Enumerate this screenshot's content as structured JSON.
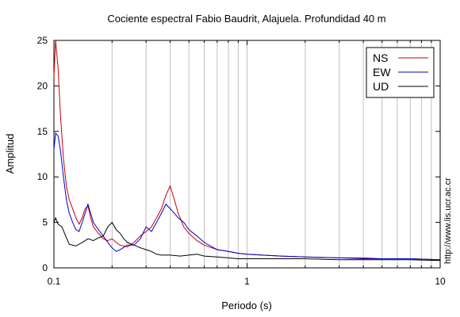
{
  "chart_data": {
    "type": "line",
    "title": "Cociente espectral Fabio Baudrit, Alajuela. Profundidad 40 m",
    "xlabel": "Periodo (s)",
    "ylabel": "Amplitud",
    "x_scale": "log",
    "xlim": [
      0.1,
      10
    ],
    "ylim": [
      0,
      25
    ],
    "x_ticks": [
      {
        "value": 0.1,
        "label": "0.1"
      },
      {
        "value": 1,
        "label": "1"
      },
      {
        "value": 10,
        "label": "10"
      }
    ],
    "y_ticks": [
      {
        "value": 0,
        "label": "0"
      },
      {
        "value": 5,
        "label": "5"
      },
      {
        "value": 10,
        "label": "10"
      },
      {
        "value": 15,
        "label": "15"
      },
      {
        "value": 20,
        "label": "20"
      },
      {
        "value": 25,
        "label": "25"
      }
    ],
    "grid": "vertical-log",
    "legend_position": "top-right",
    "credit": "http://www.lis.ucr.ac.cr",
    "series": [
      {
        "name": "NS",
        "color": "#cc0000",
        "points": [
          [
            0.1,
            21
          ],
          [
            0.102,
            25
          ],
          [
            0.105,
            22
          ],
          [
            0.108,
            17
          ],
          [
            0.112,
            12
          ],
          [
            0.116,
            9
          ],
          [
            0.12,
            7.5
          ],
          [
            0.125,
            6.5
          ],
          [
            0.13,
            5.5
          ],
          [
            0.135,
            4.8
          ],
          [
            0.14,
            5.5
          ],
          [
            0.145,
            6.5
          ],
          [
            0.15,
            6.8
          ],
          [
            0.155,
            5.5
          ],
          [
            0.16,
            4.5
          ],
          [
            0.17,
            3.8
          ],
          [
            0.18,
            3.2
          ],
          [
            0.19,
            3.0
          ],
          [
            0.2,
            3.2
          ],
          [
            0.21,
            2.8
          ],
          [
            0.22,
            2.5
          ],
          [
            0.24,
            2.3
          ],
          [
            0.26,
            2.8
          ],
          [
            0.28,
            3.5
          ],
          [
            0.3,
            4.0
          ],
          [
            0.32,
            4.5
          ],
          [
            0.34,
            5.5
          ],
          [
            0.36,
            6.5
          ],
          [
            0.38,
            8.0
          ],
          [
            0.4,
            9.0
          ],
          [
            0.42,
            7.5
          ],
          [
            0.44,
            6.0
          ],
          [
            0.47,
            4.5
          ],
          [
            0.5,
            3.8
          ],
          [
            0.55,
            3.0
          ],
          [
            0.6,
            2.5
          ],
          [
            0.7,
            2.0
          ],
          [
            0.8,
            1.8
          ],
          [
            0.9,
            1.6
          ],
          [
            1.0,
            1.5
          ],
          [
            1.2,
            1.4
          ],
          [
            1.5,
            1.3
          ],
          [
            2,
            1.2
          ],
          [
            3,
            1.1
          ],
          [
            4,
            1.1
          ],
          [
            5,
            1.0
          ],
          [
            7,
            1.0
          ],
          [
            10,
            0.9
          ]
        ]
      },
      {
        "name": "EW",
        "color": "#0000cc",
        "points": [
          [
            0.1,
            13
          ],
          [
            0.102,
            14.8
          ],
          [
            0.105,
            14.5
          ],
          [
            0.108,
            13
          ],
          [
            0.112,
            10
          ],
          [
            0.116,
            7.5
          ],
          [
            0.12,
            6
          ],
          [
            0.125,
            5
          ],
          [
            0.13,
            4.2
          ],
          [
            0.135,
            4
          ],
          [
            0.14,
            5
          ],
          [
            0.145,
            6
          ],
          [
            0.15,
            7
          ],
          [
            0.155,
            6
          ],
          [
            0.16,
            5
          ],
          [
            0.17,
            4.2
          ],
          [
            0.18,
            3.5
          ],
          [
            0.19,
            2.8
          ],
          [
            0.2,
            2.2
          ],
          [
            0.21,
            1.8
          ],
          [
            0.22,
            2.0
          ],
          [
            0.24,
            2.5
          ],
          [
            0.26,
            2.5
          ],
          [
            0.28,
            3.2
          ],
          [
            0.3,
            4.5
          ],
          [
            0.32,
            4.0
          ],
          [
            0.34,
            5.0
          ],
          [
            0.36,
            6.0
          ],
          [
            0.38,
            7.0
          ],
          [
            0.4,
            6.5
          ],
          [
            0.42,
            6.0
          ],
          [
            0.44,
            5.5
          ],
          [
            0.47,
            5.0
          ],
          [
            0.5,
            4.2
          ],
          [
            0.55,
            3.5
          ],
          [
            0.6,
            2.8
          ],
          [
            0.7,
            2.0
          ],
          [
            0.8,
            1.8
          ],
          [
            0.9,
            1.6
          ],
          [
            1.0,
            1.5
          ],
          [
            1.2,
            1.4
          ],
          [
            1.5,
            1.3
          ],
          [
            2,
            1.2
          ],
          [
            3,
            1.1
          ],
          [
            4,
            1.0
          ],
          [
            5,
            1.0
          ],
          [
            7,
            1.0
          ],
          [
            10,
            0.9
          ]
        ]
      },
      {
        "name": "UD",
        "color": "#000000",
        "points": [
          [
            0.1,
            5.0
          ],
          [
            0.102,
            5.5
          ],
          [
            0.105,
            4.8
          ],
          [
            0.11,
            4.5
          ],
          [
            0.115,
            3.5
          ],
          [
            0.12,
            2.6
          ],
          [
            0.13,
            2.4
          ],
          [
            0.14,
            2.8
          ],
          [
            0.15,
            3.2
          ],
          [
            0.16,
            3.0
          ],
          [
            0.17,
            3.3
          ],
          [
            0.18,
            3.5
          ],
          [
            0.19,
            4.5
          ],
          [
            0.2,
            5.0
          ],
          [
            0.21,
            4.2
          ],
          [
            0.22,
            3.8
          ],
          [
            0.23,
            3.2
          ],
          [
            0.24,
            2.8
          ],
          [
            0.26,
            2.5
          ],
          [
            0.28,
            2.2
          ],
          [
            0.3,
            2.0
          ],
          [
            0.32,
            1.8
          ],
          [
            0.34,
            1.5
          ],
          [
            0.36,
            1.4
          ],
          [
            0.4,
            1.4
          ],
          [
            0.45,
            1.3
          ],
          [
            0.5,
            1.4
          ],
          [
            0.55,
            1.5
          ],
          [
            0.6,
            1.3
          ],
          [
            0.7,
            1.2
          ],
          [
            0.8,
            1.1
          ],
          [
            0.9,
            1.0
          ],
          [
            1.0,
            1.0
          ],
          [
            1.5,
            1.0
          ],
          [
            2,
            1.0
          ],
          [
            3,
            0.9
          ],
          [
            5,
            0.9
          ],
          [
            7,
            0.9
          ],
          [
            10,
            0.8
          ]
        ]
      }
    ]
  }
}
